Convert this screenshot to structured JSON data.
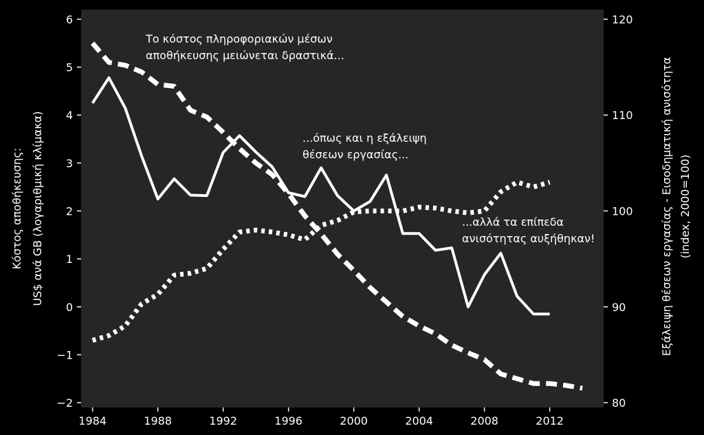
{
  "chart_data": {
    "type": "line",
    "title": "",
    "xlabel": "",
    "ylabel_left": [
      "Κόστος αποθήκευσης:",
      "US$ ανά GB (λογαριθμική κλίμακα)"
    ],
    "ylabel_right": [
      "Εξάλειψη θέσεων εργασίας - Εισοδηματική ανισότητα",
      "(index, 2000=100)"
    ],
    "xlim": [
      1983.3,
      2015.3
    ],
    "ylim_left": [
      -2.1,
      6.2
    ],
    "ylim_right": [
      79.5,
      121.0
    ],
    "grid": false,
    "legend": "none",
    "x_ticks": [
      "1984",
      "1988",
      "1992",
      "1996",
      "2000",
      "2004",
      "2008",
      "2012"
    ],
    "y_ticks_left": [
      "6",
      "5",
      "4",
      "3",
      "2",
      "1",
      "0",
      "−1",
      "−2"
    ],
    "y_ticks_right": [
      "120",
      "110",
      "100",
      "90",
      "80"
    ],
    "annotations": [
      {
        "lines": [
          "Το κόστος πληροφοριακών μέσων",
          "αποθήκευσης μειώνεται δραστικά..."
        ]
      },
      {
        "lines": [
          "...όπως και η εξάλειψη",
          "θέσεων εργασίας..."
        ]
      },
      {
        "lines": [
          "...αλλά τα επίπεδα",
          "ανισότητας αυξήθηκαν!"
        ]
      }
    ],
    "series": [
      {
        "axis": "left",
        "style": "solid",
        "x": [
          1984,
          1985,
          1986,
          1987,
          1988,
          1989,
          1990,
          1991,
          1992,
          1993,
          1994,
          1995,
          1996,
          1997,
          1998,
          1999,
          2000,
          2001,
          2002,
          2003,
          2004,
          2005,
          2006,
          2007,
          2008,
          2009,
          2010,
          2011,
          2012
        ],
        "values": [
          4.25,
          4.78,
          4.15,
          3.15,
          2.25,
          2.67,
          2.33,
          2.32,
          3.22,
          3.57,
          3.23,
          2.92,
          2.38,
          2.3,
          2.9,
          2.32,
          2.0,
          2.2,
          2.75,
          1.53,
          1.53,
          1.18,
          1.23,
          0.0,
          0.67,
          1.12,
          0.22,
          -0.15,
          -0.15
        ]
      },
      {
        "axis": "right",
        "style": "dashed",
        "x": [
          1984,
          1985,
          1986,
          1987,
          1988,
          1989,
          1990,
          1991,
          1992,
          1993,
          1994,
          1995,
          1996,
          1997,
          1998,
          1999,
          2000,
          2001,
          2002,
          2003,
          2004,
          2005,
          2006,
          2007,
          2008,
          2009,
          2010,
          2011,
          2012,
          2013,
          2014
        ],
        "values": [
          117.5,
          115.5,
          115.2,
          114.5,
          113.2,
          113.0,
          110.5,
          109.8,
          108.2,
          106.5,
          105.0,
          103.8,
          101.8,
          99.5,
          97.6,
          95.5,
          93.8,
          92.0,
          90.5,
          89.0,
          88.0,
          87.2,
          86.0,
          85.2,
          84.5,
          83.0,
          82.5,
          82.0,
          82.0,
          81.8,
          81.5
        ]
      },
      {
        "axis": "right",
        "style": "dotted",
        "x": [
          1984,
          1985,
          1986,
          1987,
          1988,
          1989,
          1990,
          1991,
          1992,
          1993,
          1994,
          1995,
          1996,
          1997,
          1998,
          1999,
          2000,
          2001,
          2002,
          2003,
          2004,
          2005,
          2006,
          2007,
          2008,
          2009,
          2010,
          2011,
          2012
        ],
        "values": [
          86.5,
          87.0,
          88.0,
          90.3,
          91.3,
          93.3,
          93.5,
          94.0,
          96.0,
          97.8,
          98.0,
          97.8,
          97.5,
          97.0,
          98.5,
          99.0,
          99.9,
          100.0,
          100.0,
          100.0,
          100.4,
          100.3,
          100.0,
          99.8,
          100.0,
          102.0,
          103.0,
          102.5,
          103.0
        ]
      }
    ]
  }
}
